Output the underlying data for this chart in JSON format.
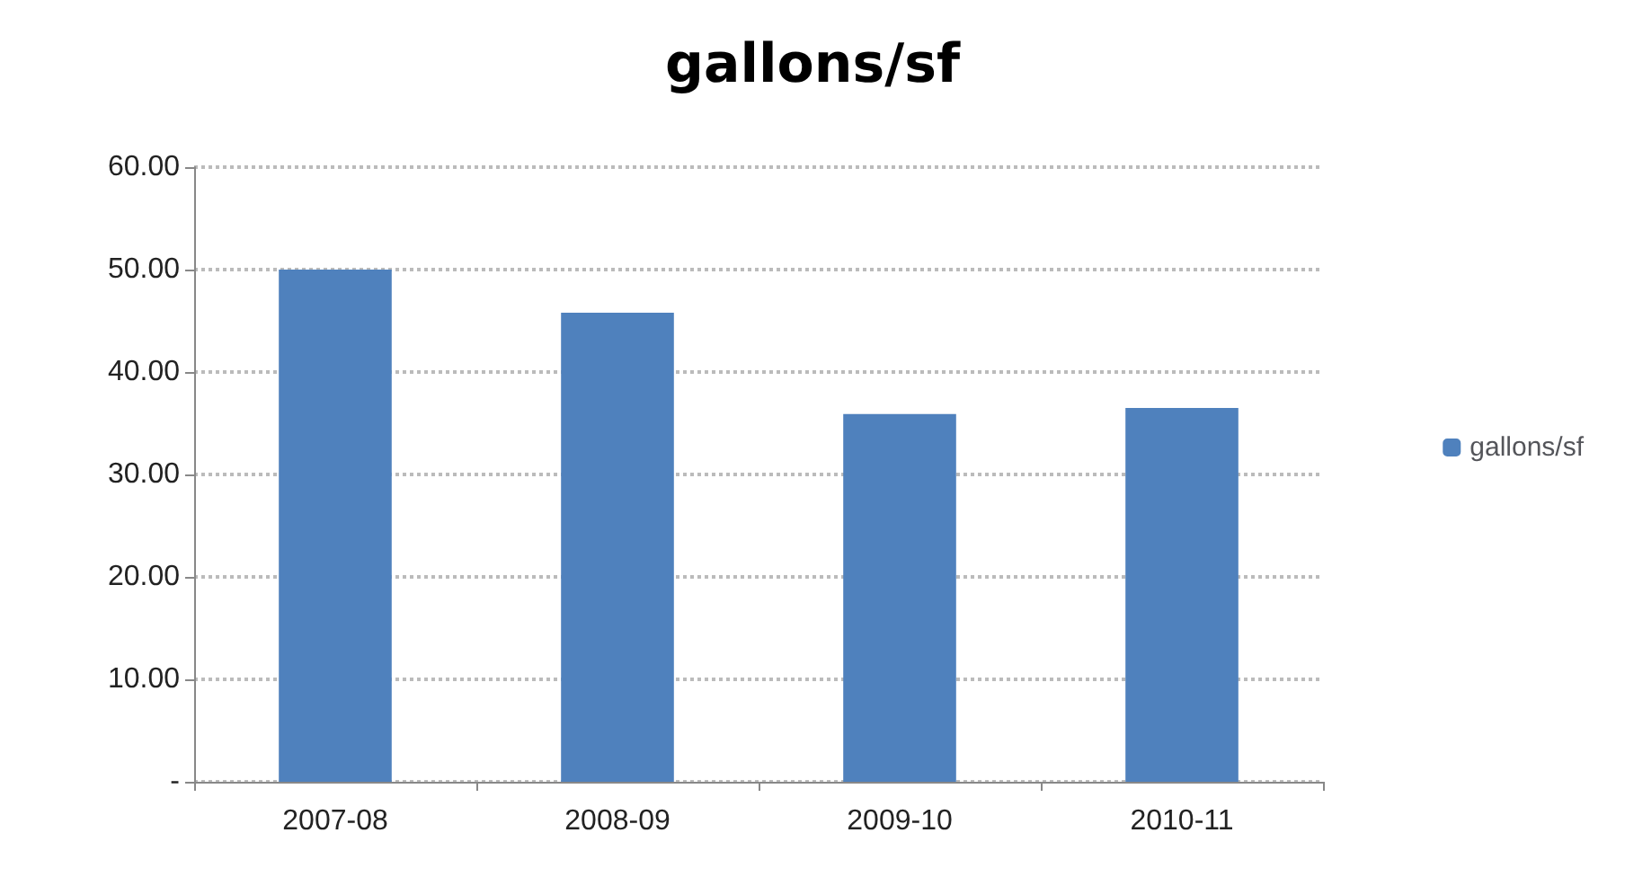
{
  "chart_data": {
    "type": "bar",
    "title": "gallons/sf",
    "categories": [
      "2007-08",
      "2008-09",
      "2009-10",
      "2010-11"
    ],
    "series": [
      {
        "name": "gallons/sf",
        "color": "#4f81bd",
        "values": [
          50.0,
          45.8,
          35.9,
          36.5
        ]
      }
    ],
    "ylim": [
      0,
      60
    ],
    "yticks": [
      {
        "value": 0,
        "label": "-"
      },
      {
        "value": 10,
        "label": "10.00"
      },
      {
        "value": 20,
        "label": "20.00"
      },
      {
        "value": 30,
        "label": "30.00"
      },
      {
        "value": 40,
        "label": "40.00"
      },
      {
        "value": 50,
        "label": "50.00"
      },
      {
        "value": 60,
        "label": "60.00"
      }
    ],
    "grid": "y",
    "legend": "right"
  }
}
